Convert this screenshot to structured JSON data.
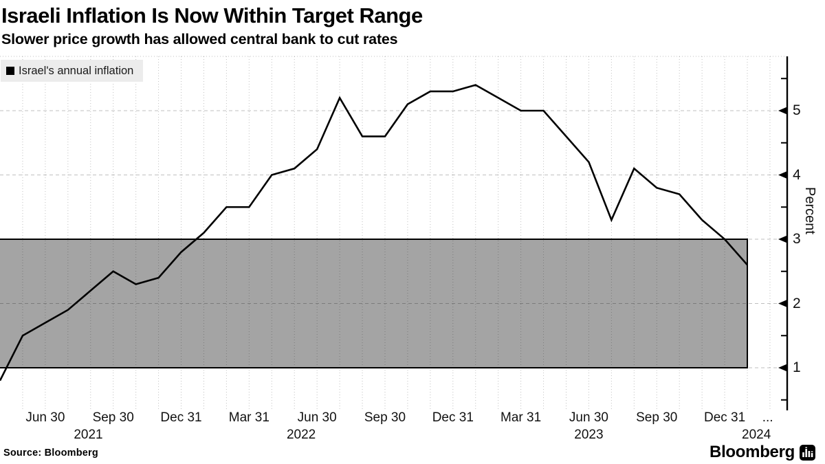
{
  "header": {
    "title": "Israeli Inflation Is Now Within Target Range",
    "subtitle": "Slower price growth has allowed central bank to cut rates"
  },
  "legend": {
    "label": "Israel's annual inflation",
    "marker_color": "#000000"
  },
  "footer": {
    "source_label": "Source: Bloomberg",
    "brand": "Bloomberg"
  },
  "colors": {
    "line": "#000000",
    "band_fill": "#a4a4a4",
    "band_border": "#000000",
    "grid": "rgba(0,0,0,0.25)",
    "legend_bg": "#ececec",
    "axis": "#000000"
  },
  "chart_data": {
    "type": "line",
    "title": "Israeli Inflation Is Now Within Target Range",
    "subtitle": "Slower price growth has allowed central bank to cut rates",
    "ylabel": "Percent",
    "ylim": [
      0.36,
      5.85
    ],
    "y_major_ticks": [
      1,
      2,
      3,
      4,
      5
    ],
    "y_minor_ticks": [
      0.5,
      1.5,
      2.5,
      3.5,
      4.5,
      5.5
    ],
    "grid": true,
    "legend_position": "top-left",
    "target_band": {
      "low": 1.0,
      "high": 3.0
    },
    "series": [
      {
        "name": "Israel's annual inflation",
        "color": "#000000",
        "start_month": "2021-04",
        "frequency": "monthly",
        "values": [
          0.8,
          1.5,
          1.7,
          1.9,
          2.2,
          2.5,
          2.3,
          2.4,
          2.8,
          3.1,
          3.5,
          3.5,
          4.0,
          4.1,
          4.4,
          5.2,
          4.6,
          4.6,
          5.1,
          5.3,
          5.3,
          5.4,
          5.2,
          5.0,
          5.0,
          4.6,
          4.2,
          3.3,
          4.1,
          3.8,
          3.7,
          3.3,
          3.0,
          2.6
        ]
      }
    ],
    "x_ticks": [
      {
        "label": "Jun 30",
        "m": 2
      },
      {
        "label": "Sep 30",
        "m": 5
      },
      {
        "label": "Dec 31",
        "m": 8
      },
      {
        "label": "Mar 31",
        "m": 11
      },
      {
        "label": "Jun 30",
        "m": 14
      },
      {
        "label": "Sep 30",
        "m": 17
      },
      {
        "label": "Dec 31",
        "m": 20
      },
      {
        "label": "Mar 31",
        "m": 23
      },
      {
        "label": "Jun 30",
        "m": 26
      },
      {
        "label": "Sep 30",
        "m": 29
      },
      {
        "label": "Dec 31",
        "m": 32
      },
      {
        "label": "...",
        "m": 33.9
      }
    ],
    "x_years": [
      {
        "label": "2021",
        "m": 3.9
      },
      {
        "label": "2022",
        "m": 13.3
      },
      {
        "label": "2023",
        "m": 26.0
      },
      {
        "label": "2024",
        "m": 33.4
      }
    ]
  }
}
